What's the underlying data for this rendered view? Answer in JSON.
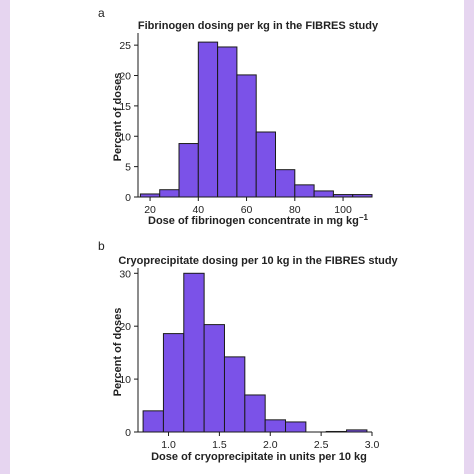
{
  "colors": {
    "bar_fill": "#7b52e8",
    "page_background": "#e6d5f0"
  },
  "panels": [
    {
      "letter": "a",
      "ylabel": "Percent of doses",
      "xlabel_main": "Dose of fibrinogen concentrate in mg kg",
      "xlabel_sup": "−1"
    },
    {
      "letter": "b",
      "ylabel": "Percent of doses",
      "xlabel_main": "Dose of cryoprecipitate in units per 10 kg",
      "xlabel_sup": ""
    }
  ],
  "chart_data": [
    {
      "type": "bar",
      "title": "Fibrinogen dosing per kg in the FIBRES study",
      "xlabel": "Dose of fibrinogen concentrate in mg kg−1",
      "ylabel": "Percent of doses",
      "xlim": [
        15,
        112
      ],
      "ylim": [
        0,
        27
      ],
      "xticks": [
        20,
        40,
        60,
        80,
        100
      ],
      "yticks": [
        0,
        5,
        10,
        15,
        20,
        25
      ],
      "bin_width": 8,
      "bins": [
        {
          "start": 16,
          "value": 0.5
        },
        {
          "start": 24,
          "value": 1.2
        },
        {
          "start": 32,
          "value": 8.8
        },
        {
          "start": 40,
          "value": 25.5
        },
        {
          "start": 48,
          "value": 24.7
        },
        {
          "start": 56,
          "value": 20.1
        },
        {
          "start": 64,
          "value": 10.7
        },
        {
          "start": 72,
          "value": 4.5
        },
        {
          "start": 80,
          "value": 2.0
        },
        {
          "start": 88,
          "value": 1.0
        },
        {
          "start": 96,
          "value": 0.4
        },
        {
          "start": 104,
          "value": 0.4
        }
      ]
    },
    {
      "type": "bar",
      "title": "Cryoprecipitate dosing per 10 kg in the FIBRES study",
      "xlabel": "Dose of cryoprecipitate in units per 10 kg",
      "ylabel": "Percent of doses",
      "xlim": [
        0.7,
        3.0
      ],
      "ylim": [
        0,
        31
      ],
      "xticks": [
        "1.0",
        "1.5",
        "2.0",
        "2.5",
        "3.0"
      ],
      "yticks": [
        0,
        10,
        20,
        30
      ],
      "bin_width": 0.2,
      "bins": [
        {
          "start": 0.75,
          "value": 4.0
        },
        {
          "start": 0.95,
          "value": 18.6
        },
        {
          "start": 1.15,
          "value": 30.0
        },
        {
          "start": 1.35,
          "value": 20.3
        },
        {
          "start": 1.55,
          "value": 14.2
        },
        {
          "start": 1.75,
          "value": 7.0
        },
        {
          "start": 1.95,
          "value": 2.3
        },
        {
          "start": 2.15,
          "value": 1.9
        },
        {
          "start": 2.35,
          "value": 0.0
        },
        {
          "start": 2.55,
          "value": 0.1
        },
        {
          "start": 2.75,
          "value": 0.4
        }
      ]
    }
  ]
}
